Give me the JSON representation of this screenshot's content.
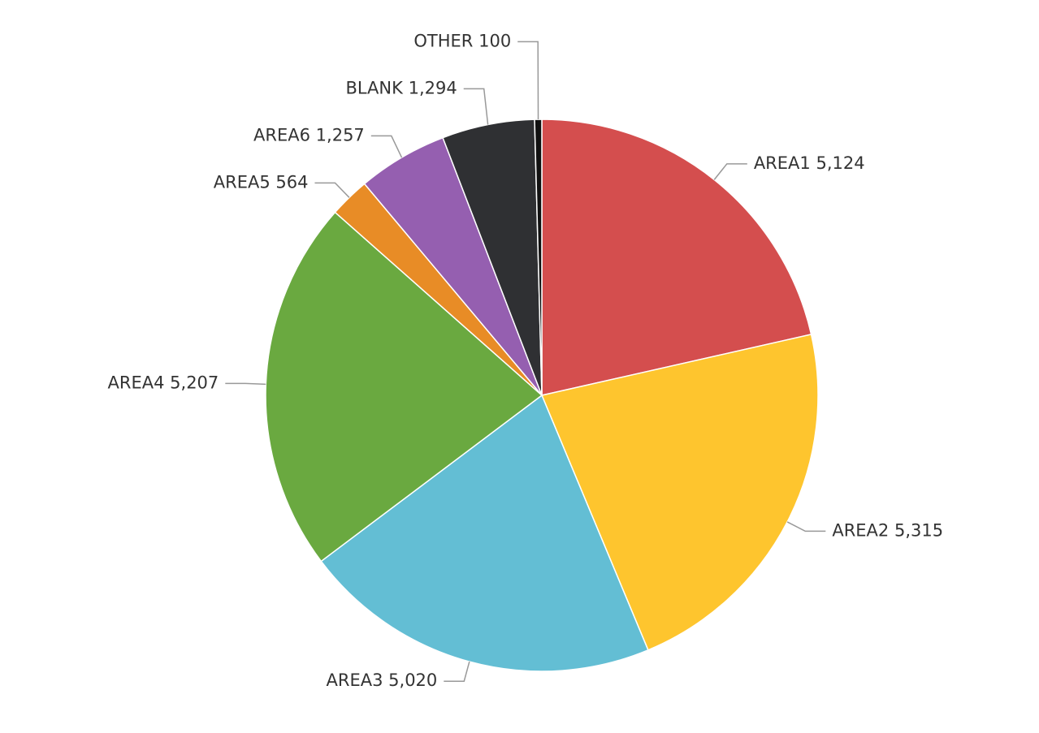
{
  "chart_data": {
    "type": "pie",
    "categories": [
      "AREA1",
      "AREA2",
      "AREA3",
      "AREA4",
      "AREA5",
      "AREA6",
      "BLANK",
      "OTHER"
    ],
    "values": [
      5124,
      5315,
      5020,
      5207,
      564,
      1257,
      1294,
      100
    ],
    "value_labels": [
      "5,124",
      "5,315",
      "5,020",
      "5,207",
      "564",
      "1,257",
      "1,294",
      "100"
    ],
    "colors": [
      "#d44e4e",
      "#fec52e",
      "#63bed4",
      "#6aa940",
      "#e88c26",
      "#955fb0",
      "#2f3033",
      "#111111"
    ]
  }
}
